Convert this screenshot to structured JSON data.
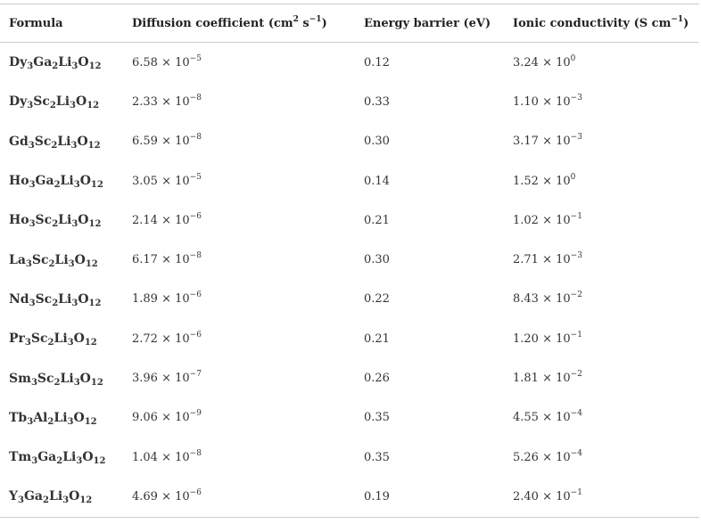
{
  "table": {
    "header": [
      [
        {
          "text": "Formula"
        }
      ],
      [
        {
          "text": "Diffusion coefficient (cm"
        },
        {
          "sup": "2"
        },
        {
          "text": " s"
        },
        {
          "sup": "−1"
        },
        {
          "text": ")"
        }
      ],
      [
        {
          "text": "Energy barrier (eV)"
        }
      ],
      [
        {
          "text": "Ionic conductivity (S cm"
        },
        {
          "sup": "−1"
        },
        {
          "text": ")"
        }
      ]
    ],
    "rows": [
      [
        "Dy3Ga2Li3O12",
        [
          {
            "text": "6.58 × 10"
          },
          {
            "sup": "−5"
          }
        ],
        "0.12",
        [
          {
            "text": "3.24 × 10"
          },
          {
            "sup": "0"
          }
        ]
      ],
      [
        "Dy3Sc2Li3O12",
        [
          {
            "text": "2.33 × 10"
          },
          {
            "sup": "−8"
          }
        ],
        "0.33",
        [
          {
            "text": "1.10 × 10"
          },
          {
            "sup": "−3"
          }
        ]
      ],
      [
        "Gd3Sc2Li3O12",
        [
          {
            "text": "6.59 × 10"
          },
          {
            "sup": "−8"
          }
        ],
        "0.30",
        [
          {
            "text": "3.17 × 10"
          },
          {
            "sup": "−3"
          }
        ]
      ],
      [
        "Ho3Ga2Li3O12",
        [
          {
            "text": "3.05 × 10"
          },
          {
            "sup": "−5"
          }
        ],
        "0.14",
        [
          {
            "text": "1.52 × 10"
          },
          {
            "sup": "0"
          }
        ]
      ],
      [
        "Ho3Sc2Li3O12",
        [
          {
            "text": "2.14 × 10"
          },
          {
            "sup": "−6"
          }
        ],
        "0.21",
        [
          {
            "text": "1.02 × 10"
          },
          {
            "sup": "−1"
          }
        ]
      ],
      [
        "La3Sc2Li3O12",
        [
          {
            "text": "6.17 × 10"
          },
          {
            "sup": "−8"
          }
        ],
        "0.30",
        [
          {
            "text": "2.71 × 10"
          },
          {
            "sup": "−3"
          }
        ]
      ],
      [
        "Nd3Sc2Li3O12",
        [
          {
            "text": "1.89 × 10"
          },
          {
            "sup": "−6"
          }
        ],
        "0.22",
        [
          {
            "text": "8.43 × 10"
          },
          {
            "sup": "−2"
          }
        ]
      ],
      [
        "Pr3Sc2Li3O12",
        [
          {
            "text": "2.72 × 10"
          },
          {
            "sup": "−6"
          }
        ],
        "0.21",
        [
          {
            "text": "1.20 × 10"
          },
          {
            "sup": "−1"
          }
        ]
      ],
      [
        "Sm3Sc2Li3O12",
        [
          {
            "text": "3.96 × 10"
          },
          {
            "sup": "−7"
          }
        ],
        "0.26",
        [
          {
            "text": "1.81 × 10"
          },
          {
            "sup": "−2"
          }
        ]
      ],
      [
        "Tb3Al2Li3O12",
        [
          {
            "text": "9.06 × 10"
          },
          {
            "sup": "−9"
          }
        ],
        "0.35",
        [
          {
            "text": "4.55 × 10"
          },
          {
            "sup": "−4"
          }
        ]
      ],
      [
        "Tm3Ga2Li3O12",
        [
          {
            "text": "1.04 × 10"
          },
          {
            "sup": "−8"
          }
        ],
        "0.35",
        [
          {
            "text": "5.26 × 10"
          },
          {
            "sup": "−4"
          }
        ]
      ],
      [
        "Y3Ga2Li3O12",
        [
          {
            "text": "4.69 × 10"
          },
          {
            "sup": "−6"
          }
        ],
        "0.19",
        [
          {
            "text": "2.40 × 10"
          },
          {
            "sup": "−1"
          }
        ]
      ]
    ]
  }
}
